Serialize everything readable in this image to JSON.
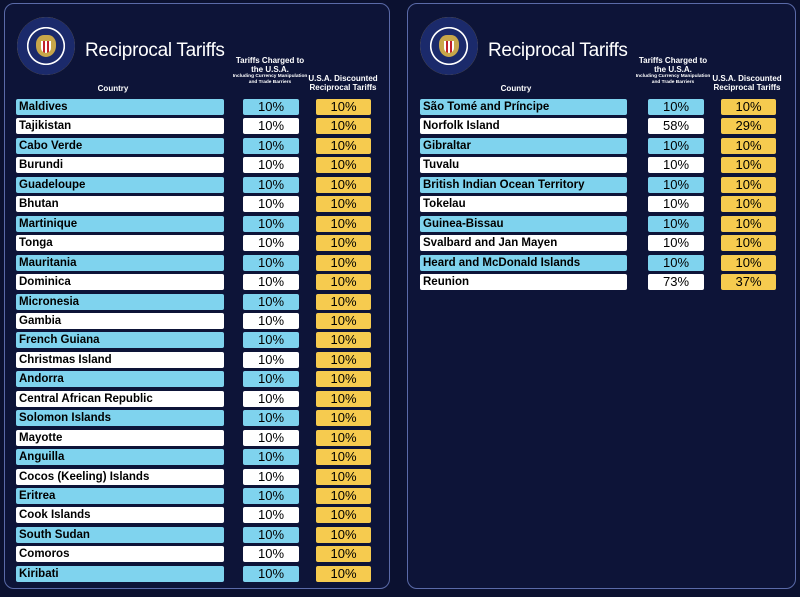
{
  "panels": [
    {
      "title": "Reciprocal Tariffs",
      "headers": {
        "country": "Country",
        "charged_main": "Tariffs Charged to the U.S.A.",
        "charged_sub": "Including Currency Manipulation and Trade Barriers",
        "discounted": "U.S.A. Discounted Reciprocal Tariffs"
      },
      "rows": [
        {
          "country": "Maldives",
          "charged": "10%",
          "discounted": "10%"
        },
        {
          "country": "Tajikistan",
          "charged": "10%",
          "discounted": "10%"
        },
        {
          "country": "Cabo Verde",
          "charged": "10%",
          "discounted": "10%"
        },
        {
          "country": "Burundi",
          "charged": "10%",
          "discounted": "10%"
        },
        {
          "country": "Guadeloupe",
          "charged": "10%",
          "discounted": "10%"
        },
        {
          "country": "Bhutan",
          "charged": "10%",
          "discounted": "10%"
        },
        {
          "country": "Martinique",
          "charged": "10%",
          "discounted": "10%"
        },
        {
          "country": "Tonga",
          "charged": "10%",
          "discounted": "10%"
        },
        {
          "country": "Mauritania",
          "charged": "10%",
          "discounted": "10%"
        },
        {
          "country": "Dominica",
          "charged": "10%",
          "discounted": "10%"
        },
        {
          "country": "Micronesia",
          "charged": "10%",
          "discounted": "10%"
        },
        {
          "country": "Gambia",
          "charged": "10%",
          "discounted": "10%"
        },
        {
          "country": "French Guiana",
          "charged": "10%",
          "discounted": "10%"
        },
        {
          "country": "Christmas Island",
          "charged": "10%",
          "discounted": "10%"
        },
        {
          "country": "Andorra",
          "charged": "10%",
          "discounted": "10%"
        },
        {
          "country": "Central African Republic",
          "charged": "10%",
          "discounted": "10%"
        },
        {
          "country": "Solomon Islands",
          "charged": "10%",
          "discounted": "10%"
        },
        {
          "country": "Mayotte",
          "charged": "10%",
          "discounted": "10%"
        },
        {
          "country": "Anguilla",
          "charged": "10%",
          "discounted": "10%"
        },
        {
          "country": "Cocos (Keeling) Islands",
          "charged": "10%",
          "discounted": "10%"
        },
        {
          "country": "Eritrea",
          "charged": "10%",
          "discounted": "10%"
        },
        {
          "country": "Cook Islands",
          "charged": "10%",
          "discounted": "10%"
        },
        {
          "country": "South Sudan",
          "charged": "10%",
          "discounted": "10%"
        },
        {
          "country": "Comoros",
          "charged": "10%",
          "discounted": "10%"
        },
        {
          "country": "Kiribati",
          "charged": "10%",
          "discounted": "10%"
        }
      ]
    },
    {
      "title": "Reciprocal Tariffs",
      "headers": {
        "country": "Country",
        "charged_main": "Tariffs Charged to the U.S.A.",
        "charged_sub": "Including Currency Manipulation and Trade Barriers",
        "discounted": "U.S.A. Discounted Reciprocal Tariffs"
      },
      "rows": [
        {
          "country": "São Tomé and Príncipe",
          "charged": "10%",
          "discounted": "10%"
        },
        {
          "country": "Norfolk Island",
          "charged": "58%",
          "discounted": "29%"
        },
        {
          "country": "Gibraltar",
          "charged": "10%",
          "discounted": "10%"
        },
        {
          "country": "Tuvalu",
          "charged": "10%",
          "discounted": "10%"
        },
        {
          "country": "British Indian Ocean Territory",
          "charged": "10%",
          "discounted": "10%"
        },
        {
          "country": "Tokelau",
          "charged": "10%",
          "discounted": "10%"
        },
        {
          "country": "Guinea-Bissau",
          "charged": "10%",
          "discounted": "10%"
        },
        {
          "country": "Svalbard and Jan Mayen",
          "charged": "10%",
          "discounted": "10%"
        },
        {
          "country": "Heard and McDonald Islands",
          "charged": "10%",
          "discounted": "10%"
        },
        {
          "country": "Reunion",
          "charged": "73%",
          "discounted": "37%"
        }
      ]
    }
  ],
  "colors": {
    "background": "#0b1130",
    "row_alt_cyan": "#7fd3ee",
    "row_alt_white": "#ffffff",
    "discount_yellow": "#f6cb4f"
  },
  "icons": {
    "seal": "presidential-seal-icon"
  }
}
